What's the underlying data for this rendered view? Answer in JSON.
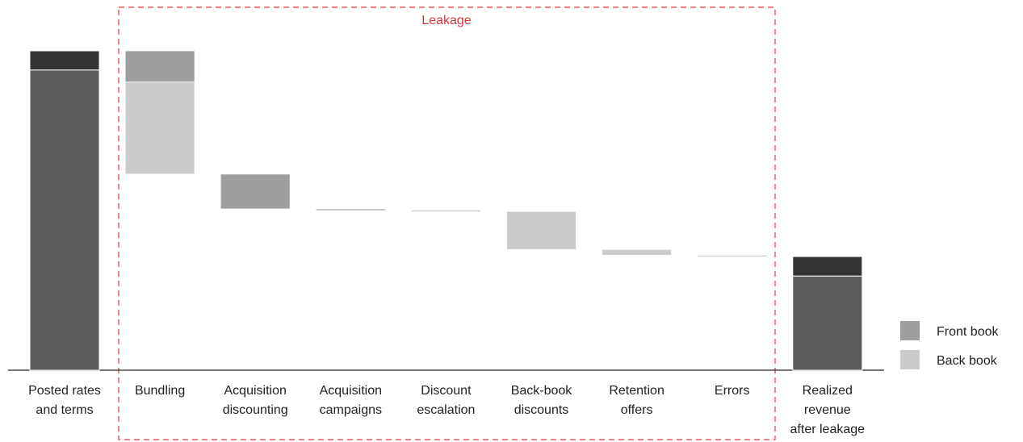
{
  "chart_data": {
    "type": "waterfall",
    "annotation": "Leakage",
    "categories": [
      [
        "Posted rates",
        "and terms"
      ],
      [
        "Bundling"
      ],
      [
        "Acquisition",
        "discounting"
      ],
      [
        "Acquisition",
        "campaigns"
      ],
      [
        "Discount",
        "escalation"
      ],
      [
        "Back-book",
        "discounts"
      ],
      [
        "Retention",
        "offers"
      ],
      [
        "Errors"
      ],
      [
        "Realized",
        "revenue",
        "after leakage"
      ]
    ],
    "series": [
      {
        "color": "#5b5b5b",
        "values": [
          94,
          null,
          null,
          null,
          null,
          null,
          null,
          null,
          29.5
        ]
      },
      {
        "color": "#333333",
        "values": [
          6,
          null,
          null,
          null,
          null,
          null,
          null,
          null,
          6.1
        ]
      },
      {
        "name": "Front book",
        "color": "#9e9e9e",
        "values": [
          null,
          9.8,
          10.9,
          0.5,
          0.3,
          null,
          null,
          null,
          null
        ]
      },
      {
        "name": "Back book",
        "color": "#cbcbcb",
        "values": [
          null,
          28.8,
          null,
          null,
          null,
          11.9,
          1.8,
          0.5,
          null
        ]
      }
    ]
  }
}
